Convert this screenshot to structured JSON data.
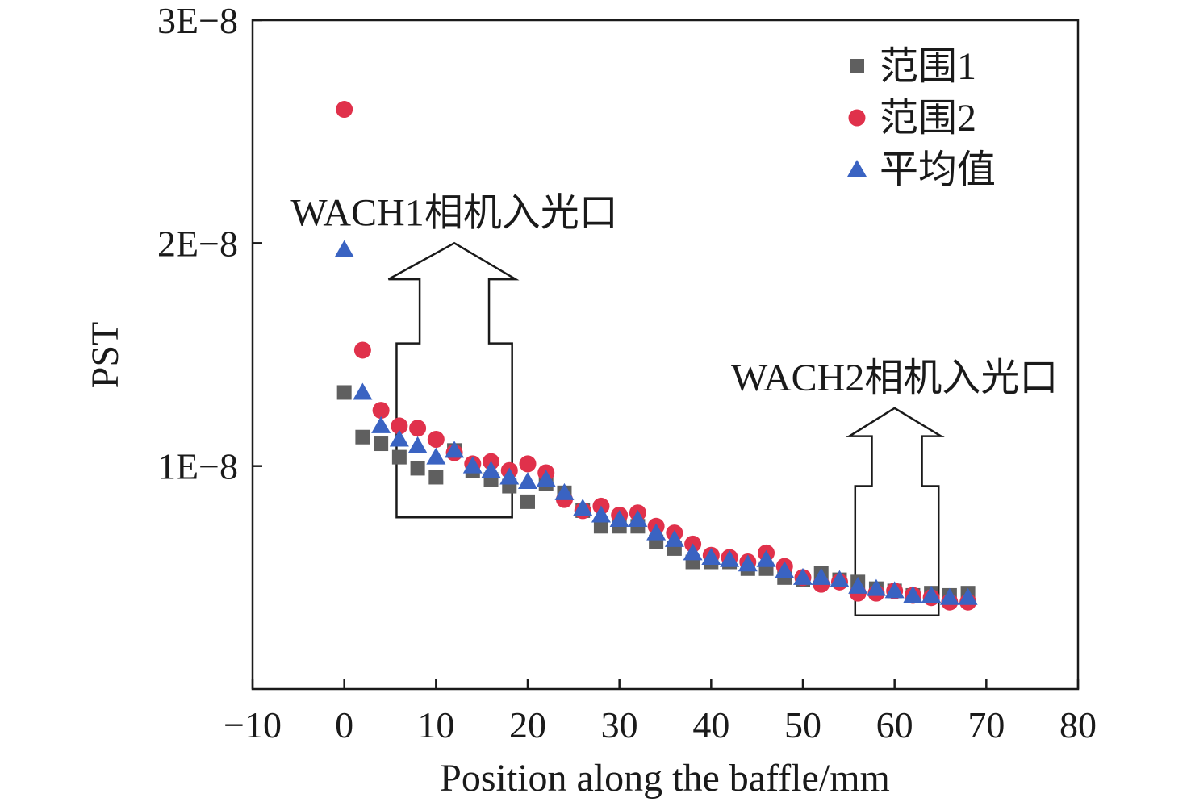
{
  "chart_data": {
    "type": "scatter",
    "title": "",
    "xlabel": "Position along the baffle/mm",
    "ylabel": "PST",
    "xlim": [
      -10,
      80
    ],
    "ylim": [
      0,
      3e-08
    ],
    "xticks": [
      -10,
      0,
      10,
      20,
      30,
      40,
      50,
      60,
      70,
      80
    ],
    "xtick_labels": [
      "−10",
      "0",
      "10",
      "20",
      "30",
      "40",
      "50",
      "60",
      "70",
      "80"
    ],
    "yticks": [
      1e-08,
      2e-08,
      3e-08
    ],
    "ytick_labels": [
      "1E−8",
      "2E−8",
      "3E−8"
    ],
    "grid": false,
    "legend_position": "top-right",
    "series": [
      {
        "name": "范围1",
        "marker": "square",
        "color": "#5f5f5f",
        "x": [
          0,
          2,
          4,
          6,
          8,
          10,
          12,
          14,
          16,
          18,
          20,
          22,
          24,
          26,
          28,
          30,
          32,
          34,
          36,
          38,
          40,
          42,
          44,
          46,
          48,
          50,
          52,
          54,
          56,
          58,
          60,
          62,
          64,
          66,
          68
        ],
        "y": [
          1.33e-08,
          1.13e-08,
          1.1e-08,
          1.04e-08,
          9.9e-09,
          9.5e-09,
          1.07e-08,
          9.8e-09,
          9.4e-09,
          9.1e-09,
          8.4e-09,
          9.2e-09,
          8.8e-09,
          8e-09,
          7.3e-09,
          7.3e-09,
          7.3e-09,
          6.6e-09,
          6.3e-09,
          5.7e-09,
          5.7e-09,
          5.7e-09,
          5.4e-09,
          5.4e-09,
          5e-09,
          4.9e-09,
          5.2e-09,
          4.9e-09,
          4.8e-09,
          4.5e-09,
          4.4e-09,
          4.2e-09,
          4.3e-09,
          4.2e-09,
          4.3e-09
        ]
      },
      {
        "name": "范围2",
        "marker": "circle",
        "color": "#e0314b",
        "x": [
          0,
          2,
          4,
          6,
          8,
          10,
          12,
          14,
          16,
          18,
          20,
          22,
          24,
          26,
          28,
          30,
          32,
          34,
          36,
          38,
          40,
          42,
          44,
          46,
          48,
          50,
          52,
          54,
          56,
          58,
          60,
          62,
          64,
          66,
          68
        ],
        "y": [
          2.6e-08,
          1.52e-08,
          1.25e-08,
          1.18e-08,
          1.17e-08,
          1.12e-08,
          1.06e-08,
          1.01e-08,
          1.02e-08,
          9.8e-09,
          1.01e-08,
          9.7e-09,
          8.5e-09,
          8e-09,
          8.2e-09,
          7.8e-09,
          7.9e-09,
          7.3e-09,
          7e-09,
          6.5e-09,
          6e-09,
          5.9e-09,
          5.7e-09,
          6.1e-09,
          5.5e-09,
          5e-09,
          4.7e-09,
          4.8e-09,
          4.3e-09,
          4.3e-09,
          4.4e-09,
          4.2e-09,
          4.1e-09,
          3.9e-09,
          3.9e-09
        ]
      },
      {
        "name": "平均值",
        "marker": "triangle",
        "color": "#3a63c2",
        "x": [
          0,
          2,
          4,
          6,
          8,
          10,
          12,
          14,
          16,
          18,
          20,
          22,
          24,
          26,
          28,
          30,
          32,
          34,
          36,
          38,
          40,
          42,
          44,
          46,
          48,
          50,
          52,
          54,
          56,
          58,
          60,
          62,
          64,
          66,
          68
        ],
        "y": [
          1.97e-08,
          1.33e-08,
          1.18e-08,
          1.12e-08,
          1.09e-08,
          1.04e-08,
          1.07e-08,
          1e-08,
          9.8e-09,
          9.5e-09,
          9.3e-09,
          9.4e-09,
          8.8e-09,
          8.1e-09,
          7.8e-09,
          7.6e-09,
          7.6e-09,
          7e-09,
          6.7e-09,
          6.1e-09,
          5.9e-09,
          5.8e-09,
          5.6e-09,
          5.8e-09,
          5.3e-09,
          5e-09,
          5e-09,
          4.9e-09,
          4.6e-09,
          4.5e-09,
          4.4e-09,
          4.2e-09,
          4.2e-09,
          4.1e-09,
          4.1e-09
        ]
      }
    ],
    "annotations": [
      {
        "text": "WACH1相机入光口",
        "box_x": [
          5.7,
          18.3
        ],
        "box_y": [
          7.7e-09,
          1.55e-08
        ],
        "arrow_tip": [
          12,
          2e-08
        ]
      },
      {
        "text": "WACH2相机入光口",
        "box_x": [
          55.7,
          64.8
        ],
        "box_y": [
          3.3e-09,
          9.1e-09
        ],
        "arrow_tip": [
          60,
          1.26e-08
        ]
      }
    ]
  }
}
